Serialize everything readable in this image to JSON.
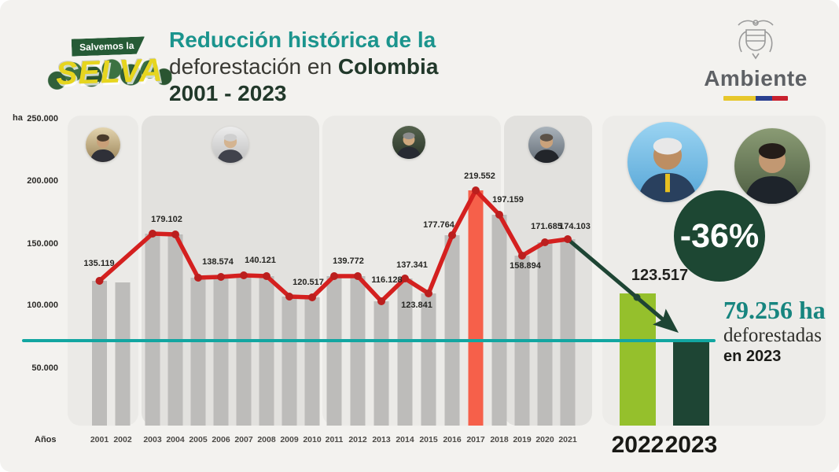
{
  "logo": {
    "tagline": "Salvemos la",
    "name": "SELVA"
  },
  "title": {
    "line1": "Reducción histórica de la",
    "line2_regular": "deforestación en",
    "line2_bold": "Colombia",
    "line3": "2001 - 2023"
  },
  "brand": {
    "name": "Ambiente"
  },
  "axis": {
    "unit": "ha",
    "ticks": [
      "250.000",
      "200.000",
      "150.000",
      "100.000",
      "50.000"
    ],
    "x_title": "Años"
  },
  "avatars": [
    "pastrana",
    "uribe",
    "santos",
    "duque",
    "petro",
    "muhamad"
  ],
  "callout": {
    "change": "-36%",
    "value_2022": "123.517",
    "headline": "79.256 ha",
    "line2": "deforestadas",
    "line3": "en 2023"
  },
  "chart_data": {
    "type": "bar",
    "title": "Reducción histórica de la deforestación en Colombia 2001 - 2023",
    "ylabel": "ha",
    "xlabel": "Años",
    "ylim": [
      0,
      250000
    ],
    "yticks": [
      250000,
      200000,
      150000,
      100000,
      50000
    ],
    "grid": false,
    "legend": "none",
    "years": [
      2001,
      2002,
      2003,
      2004,
      2005,
      2006,
      2007,
      2008,
      2009,
      2010,
      2011,
      2012,
      2013,
      2014,
      2015,
      2016,
      2017,
      2018,
      2019,
      2020,
      2021,
      2022,
      2023
    ],
    "values": [
      135119,
      134000,
      179102,
      179000,
      138574,
      139000,
      140121,
      140000,
      120517,
      120000,
      139772,
      140000,
      116128,
      137341,
      123841,
      177764,
      219552,
      197159,
      158894,
      171685,
      174103,
      123517,
      79256
    ],
    "estimated_years": [
      2002,
      2004,
      2006,
      2008,
      2010,
      2012
    ],
    "point_labels": {
      "2001": "135.119",
      "2003": "179.102",
      "2005": "138.574",
      "2007": "140.121",
      "2009": "120.517",
      "2011": "139.772",
      "2013": "116.128",
      "2014": "137.341",
      "2015": "123.841",
      "2016": "177.764",
      "2017": "219.552",
      "2018": "197.159",
      "2019": "158.894",
      "2020": "171.685",
      "2021": "174.103",
      "2022": "123.517"
    },
    "line_series_years": [
      2001,
      2003,
      2004,
      2005,
      2006,
      2007,
      2008,
      2009,
      2010,
      2011,
      2012,
      2013,
      2014,
      2015,
      2016,
      2017,
      2018,
      2019,
      2020,
      2021
    ],
    "trend_arrow": {
      "from_year": 2021,
      "through_year": 2022,
      "to_year": 2023
    },
    "reference_line": {
      "value": 79256,
      "label": "79.256 ha deforestadas en 2023"
    },
    "colors": {
      "bar_default": "#bdbcba",
      "bar_2017": "#f6604a",
      "bar_2022": "#95c02c",
      "bar_2023": "#1e4534",
      "line_red": "#d4201f",
      "dot_red": "#bb1f1e",
      "arrow_green": "#1e4534",
      "reference_teal": "#12a6a1",
      "label_text": "#262623"
    }
  }
}
